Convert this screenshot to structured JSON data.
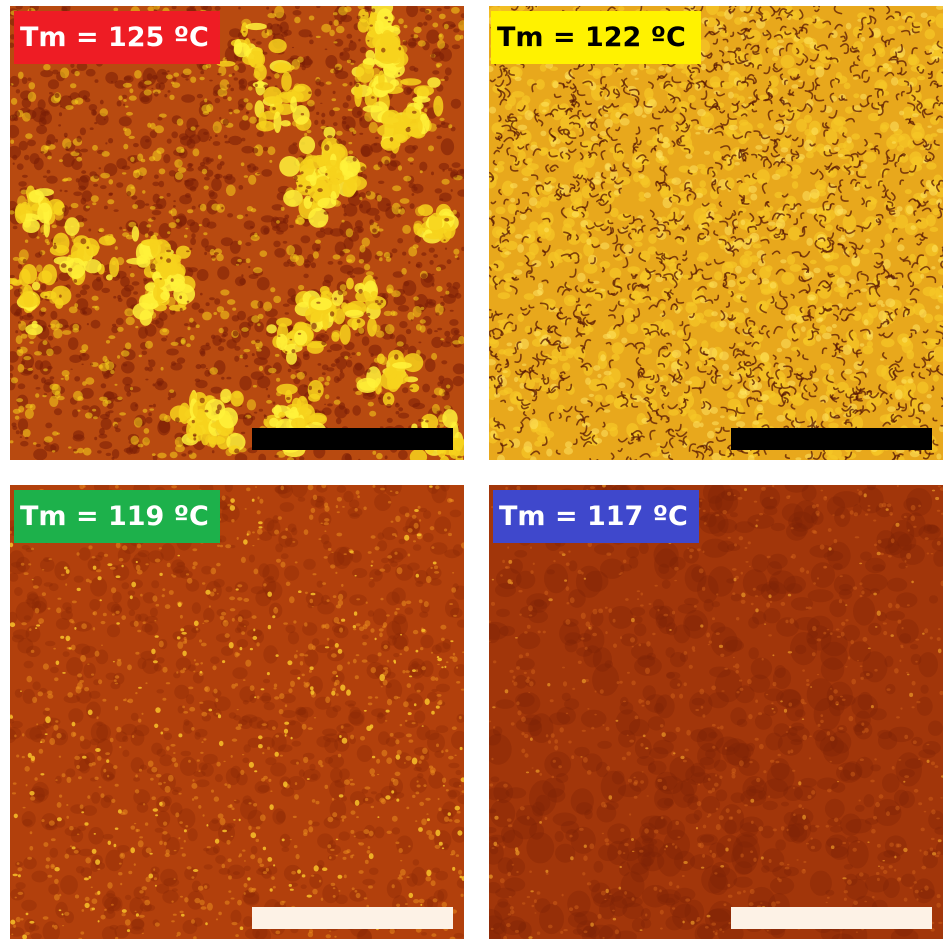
{
  "panels": [
    {
      "label": "Tm = 125 ºC",
      "label_bg": "#ee1c24",
      "label_color": "#ffffff",
      "scale_bar_color": "#000000",
      "palette": {
        "base": "#b84a10",
        "dark": "#7a1e06",
        "bright": "#f7d21c",
        "hot": "#fff23a"
      },
      "texture": "spherulites"
    },
    {
      "label": "Tm = 122 ºC",
      "label_bg": "#fff200",
      "label_color": "#000000",
      "scale_bar_color": "#000000",
      "palette": {
        "base": "#e8a81c",
        "dark": "#5a1a04",
        "bright": "#f6c826",
        "hot": "#ffe766"
      },
      "texture": "cellular"
    },
    {
      "label": "Tm = 119 ºC",
      "label_bg": "#1db14b",
      "label_color": "#ffffff",
      "scale_bar_color": "#fdf2e6",
      "palette": {
        "base": "#b2400c",
        "dark": "#8a2806",
        "bright": "#e98a1e",
        "hot": "#f8c22a"
      },
      "texture": "speckle"
    },
    {
      "label": "Tm = 117 ºC",
      "label_bg": "#3f48cc",
      "label_color": "#ffffff",
      "scale_bar_color": "#fdf2e6",
      "palette": {
        "base": "#a2360a",
        "dark": "#7a2205",
        "bright": "#d4661a",
        "hot": "#ec9a26"
      },
      "texture": "fine"
    }
  ]
}
